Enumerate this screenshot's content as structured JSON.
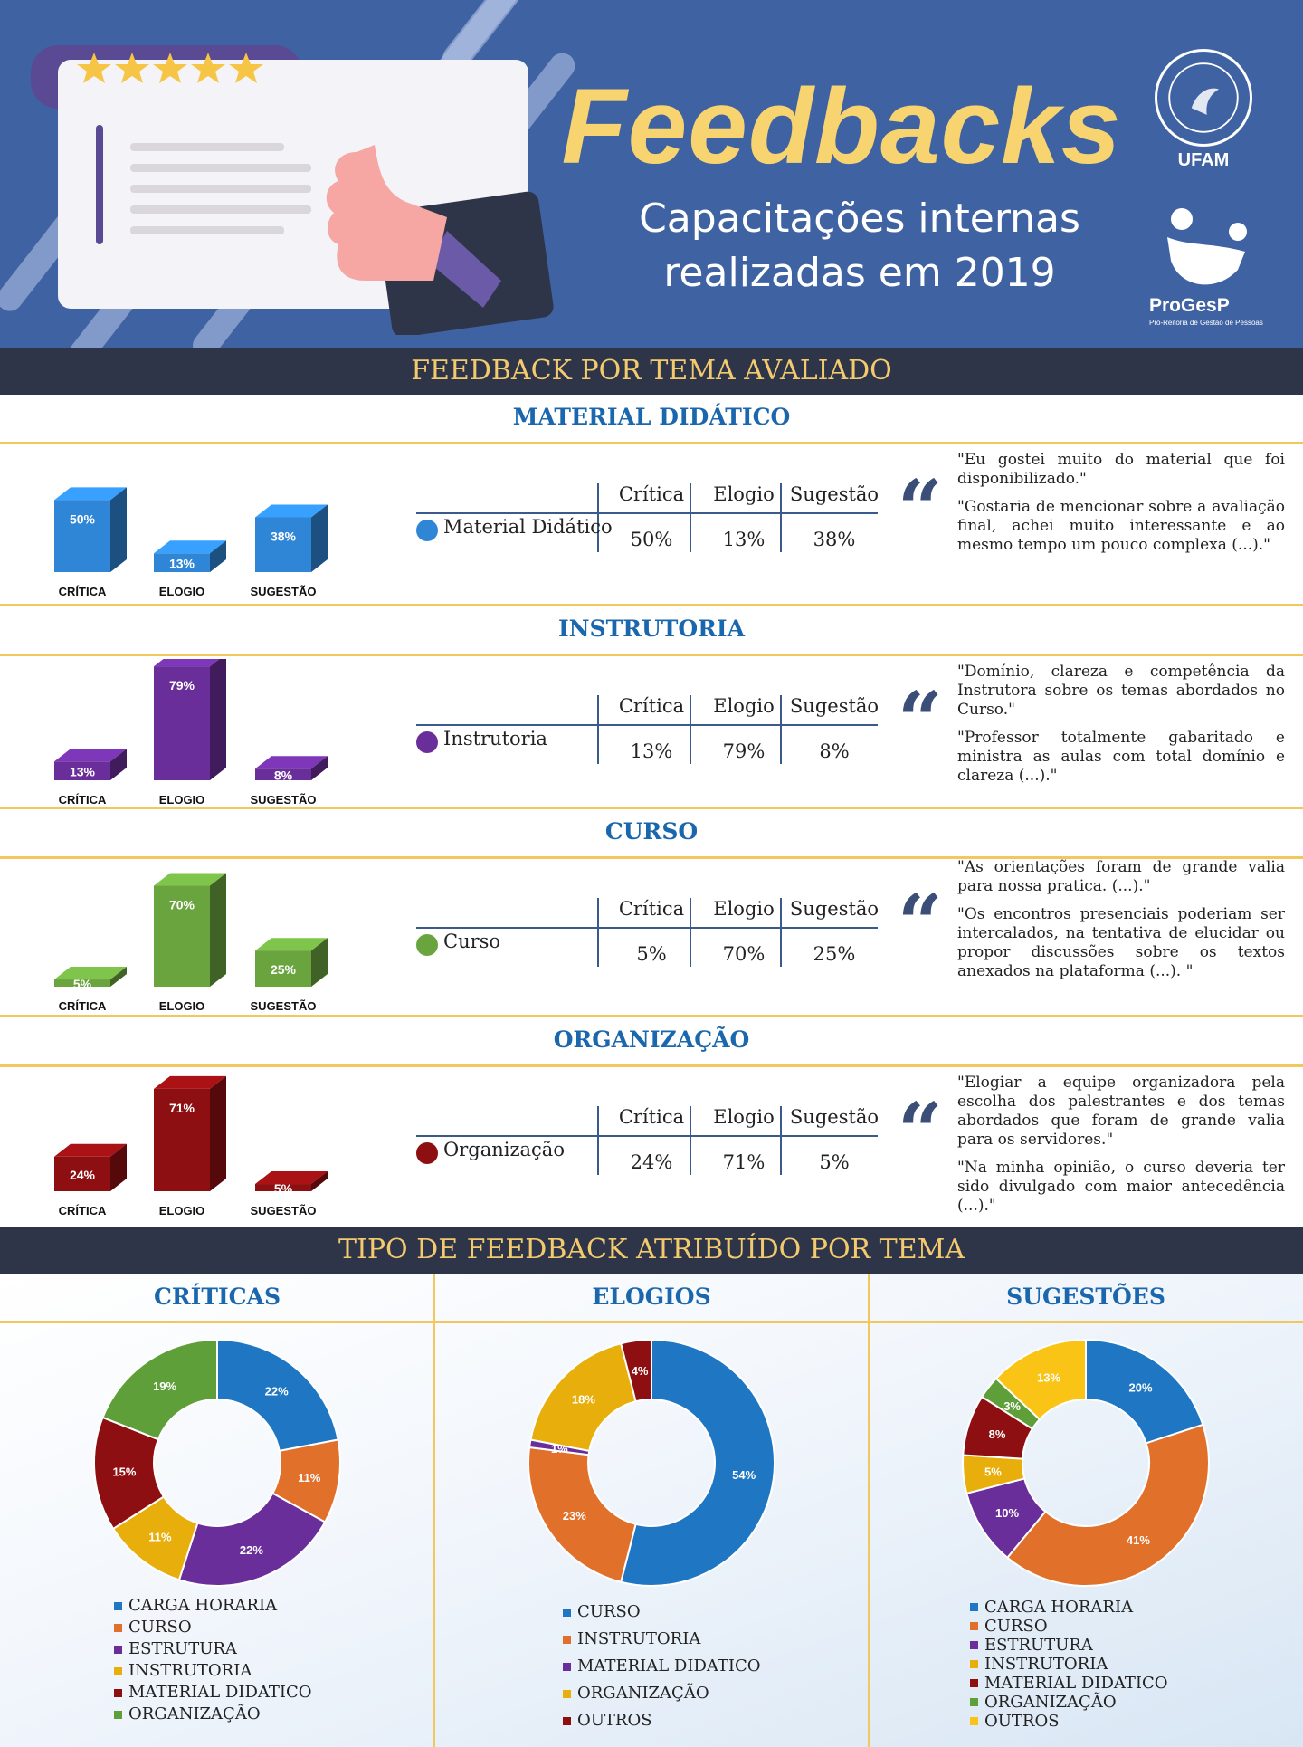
{
  "header": {
    "title": "Feedbacks",
    "subtitle_line1": "Capacitações internas",
    "subtitle_line2": "realizadas em 2019",
    "ufam_label": "UFAM",
    "progesp_label": "ProGesP",
    "progesp_sub": "Pró-Reitoria de Gestão de Pessoas"
  },
  "band1": "FEEDBACK POR TEMA AVALIADO",
  "band2": "TIPO DE FEEDBACK ATRIBUÍDO POR TEMA",
  "table_headers": [
    "Crítica",
    "Elogio",
    "Sugestão"
  ],
  "themes": [
    {
      "title": "MATERIAL DIDÁTICO",
      "row_label": "Material Didático",
      "color": "#2f86d6",
      "values": [
        "50%",
        "13%",
        "38%"
      ],
      "quotes": [
        "\"Eu gostei muito do material que foi disponibilizado.\"",
        "\"Gostaria de mencionar sobre a avaliação final, achei muito interessante e ao mesmo tempo um pouco complexa (...).\""
      ]
    },
    {
      "title": "INSTRUTORIA",
      "row_label": "Instrutoria",
      "color": "#6a2e9a",
      "values": [
        "13%",
        "79%",
        "8%"
      ],
      "quotes": [
        "\"Domínio, clareza e competência da Instrutora sobre os temas abordados no Curso.\"",
        "\"Professor totalmente gabaritado e ministra as aulas com total domínio e clareza (...).\""
      ]
    },
    {
      "title": "CURSO",
      "row_label": "Curso",
      "color": "#6aa43f",
      "values": [
        "5%",
        "70%",
        "25%"
      ],
      "quotes": [
        "\"As orientações foram de grande valia para nossa pratica. (...).\"",
        "\"Os encontros presenciais poderiam ser intercalados, na tentativa de elucidar ou propor discussões sobre os textos anexados na plataforma (...). \""
      ]
    },
    {
      "title": "ORGANIZAÇÃO",
      "row_label": "Organização",
      "color": "#8e0f12",
      "values": [
        "24%",
        "71%",
        "5%"
      ],
      "quotes": [
        "\"Elogiar a equipe organizadora pela escolha dos palestrantes e dos temas abordados que foram de grande valia para os servidores.\"",
        "\"Na minha opinião, o curso deveria ter sido divulgado com maior antecedência (...).\""
      ]
    }
  ],
  "chart_data": [
    {
      "type": "bar",
      "title": "MATERIAL DIDÁTICO",
      "categories": [
        "CRÍTICA",
        "ELOGIO",
        "SUGESTÃO"
      ],
      "values": [
        50,
        13,
        38
      ]
    },
    {
      "type": "bar",
      "title": "INSTRUTORIA",
      "categories": [
        "CRÍTICA",
        "ELOGIO",
        "SUGESTÃO"
      ],
      "values": [
        13,
        79,
        8
      ]
    },
    {
      "type": "bar",
      "title": "CURSO",
      "categories": [
        "CRÍTICA",
        "ELOGIO",
        "SUGESTÃO"
      ],
      "values": [
        5,
        70,
        25
      ]
    },
    {
      "type": "bar",
      "title": "ORGANIZAÇÃO",
      "categories": [
        "CRÍTICA",
        "ELOGIO",
        "SUGESTÃO"
      ],
      "values": [
        24,
        71,
        5
      ]
    },
    {
      "type": "pie",
      "title": "CRÍTICAS",
      "labels": [
        "CARGA HORARIA",
        "CURSO",
        "ESTRUTURA",
        "INSTRUTORIA",
        "MATERIAL DIDATICO",
        "ORGANIZAÇÃO"
      ],
      "values": [
        22,
        11,
        22,
        11,
        15,
        19
      ],
      "colors": [
        "#1f77c4",
        "#e0702a",
        "#6a2e9a",
        "#e8ae0c",
        "#8e0f12",
        "#5f9f3a"
      ]
    },
    {
      "type": "pie",
      "title": "ELOGIOS",
      "labels": [
        "CURSO",
        "INSTRUTORIA",
        "MATERIAL DIDATICO",
        "ORGANIZAÇÃO",
        "OUTROS"
      ],
      "values": [
        54,
        23,
        1,
        18,
        4
      ],
      "colors": [
        "#1f77c4",
        "#e0702a",
        "#6a2e9a",
        "#e8ae0c",
        "#8e0f12"
      ]
    },
    {
      "type": "pie",
      "title": "SUGESTÕES",
      "labels": [
        "CARGA HORARIA",
        "CURSO",
        "ESTRUTURA",
        "INSTRUTORIA",
        "MATERIAL DIDATICO",
        "ORGANIZAÇÃO",
        "OUTROS"
      ],
      "values": [
        20,
        41,
        10,
        5,
        8,
        3,
        13
      ],
      "colors": [
        "#1f77c4",
        "#e0702a",
        "#6a2e9a",
        "#e8ae0c",
        "#8e0f12",
        "#5f9f3a",
        "#f9c416"
      ]
    }
  ]
}
